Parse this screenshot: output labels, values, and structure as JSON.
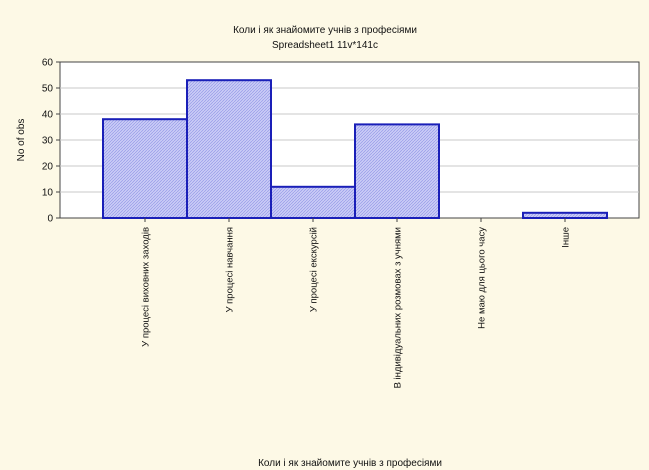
{
  "chart_data": {
    "type": "bar",
    "title": "Коли і як знайомите учнів з професіями",
    "subtitle": "Spreadsheet1 11v*141c",
    "xlabel": "Коли і як знайомите учнів з професіями",
    "ylabel": "No of obs",
    "ylim": [
      0,
      60
    ],
    "yticks": [
      0,
      10,
      20,
      30,
      40,
      50,
      60
    ],
    "grid": true,
    "categories": [
      "У процесі виховних заходів",
      "У процесі навчання",
      "У процесі екскурсій",
      "В індивідуальних розмовах з учнями",
      "Не маю для цього часу",
      "Інше"
    ],
    "values": [
      38,
      53,
      12,
      36,
      0,
      2
    ],
    "colors": {
      "bar_fill": "#c4c6f4",
      "bar_stroke": "#1a1fb8",
      "background": "#fdf9e6",
      "plot_background": "#ffffff",
      "grid": "#c8c8c8"
    }
  }
}
